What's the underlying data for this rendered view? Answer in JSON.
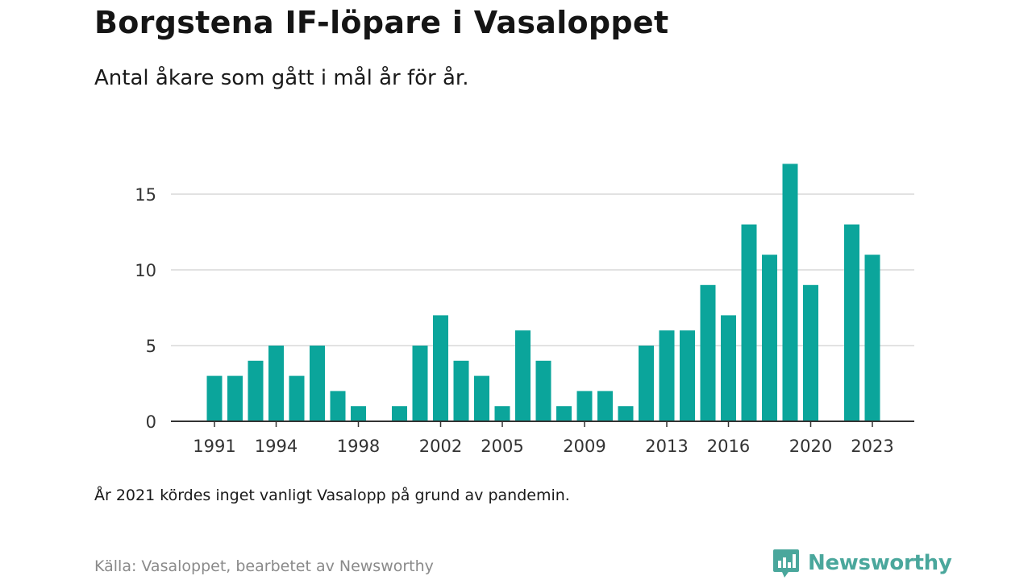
{
  "header": {
    "title": "Borgstena IF-löpare i Vasaloppet",
    "subtitle": "Antal åkare som gått i mål år för år."
  },
  "footer": {
    "note": "År 2021 kördes inget vanligt Vasalopp på grund av pandemin.",
    "source": "Källa: Vasaloppet, bearbetet av Newsworthy",
    "brand": "Newsworthy"
  },
  "colors": {
    "bar": "#0ba59b",
    "grid": "#d9d9d9",
    "axis": "#333333",
    "brand": "#4aa79c"
  },
  "icons": {
    "logo": "newsworthy-chart-bubble-icon"
  },
  "chart_data": {
    "type": "bar",
    "title": "Borgstena IF-löpare i Vasaloppet",
    "subtitle": "Antal åkare som gått i mål år för år.",
    "xlabel": "",
    "ylabel": "",
    "ylim": [
      0,
      18
    ],
    "yticks": [
      0,
      5,
      10,
      15
    ],
    "xticks": [
      1991,
      1994,
      1998,
      2002,
      2005,
      2009,
      2013,
      2016,
      2020,
      2023
    ],
    "grid": true,
    "categories": [
      1991,
      1992,
      1993,
      1994,
      1995,
      1996,
      1997,
      1998,
      1999,
      2000,
      2001,
      2002,
      2003,
      2004,
      2005,
      2006,
      2007,
      2008,
      2009,
      2010,
      2011,
      2012,
      2013,
      2014,
      2015,
      2016,
      2017,
      2018,
      2019,
      2020,
      2021,
      2022,
      2023
    ],
    "values": [
      3,
      3,
      4,
      5,
      3,
      5,
      2,
      1,
      0,
      1,
      5,
      7,
      4,
      3,
      1,
      6,
      4,
      1,
      2,
      2,
      1,
      5,
      6,
      6,
      9,
      7,
      13,
      11,
      17,
      9,
      0,
      13,
      11
    ]
  }
}
